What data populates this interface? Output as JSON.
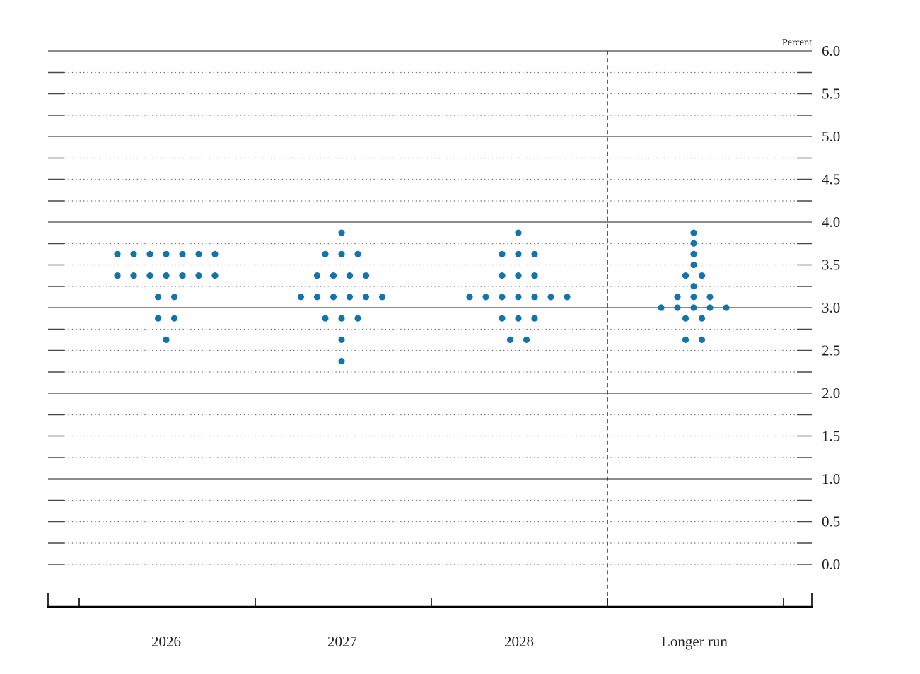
{
  "chart_data": {
    "type": "scatter",
    "variant": "fomc-dot-plot",
    "title": "",
    "xlabel": "",
    "ylabel": "Percent",
    "ylim": [
      0.0,
      6.0
    ],
    "y_minor_step": 0.25,
    "y_label_step": 0.5,
    "y_tick_labels": [
      "0.0",
      "0.5",
      "1.0",
      "1.5",
      "2.0",
      "2.5",
      "3.0",
      "3.5",
      "4.0",
      "4.5",
      "5.0",
      "5.5",
      "6.0"
    ],
    "grid": "dotted lines every 0.25, solid lines at integers, short ticks at both edges",
    "legend": "none",
    "dot_color": "#1274a8",
    "categories": [
      "2026",
      "2027",
      "2028",
      "Longer run"
    ],
    "separator": {
      "style": "dashed-vertical",
      "after_category": "2028"
    },
    "series": [
      {
        "name": "2026",
        "dots": [
          [
            3.625,
            7
          ],
          [
            3.375,
            7
          ],
          [
            3.125,
            2
          ],
          [
            2.875,
            2
          ],
          [
            2.625,
            1
          ]
        ]
      },
      {
        "name": "2027",
        "dots": [
          [
            3.875,
            1
          ],
          [
            3.625,
            3
          ],
          [
            3.375,
            4
          ],
          [
            3.125,
            6
          ],
          [
            2.875,
            3
          ],
          [
            2.625,
            1
          ],
          [
            2.375,
            1
          ]
        ]
      },
      {
        "name": "2028",
        "dots": [
          [
            3.875,
            1
          ],
          [
            3.625,
            3
          ],
          [
            3.375,
            3
          ],
          [
            3.125,
            7
          ],
          [
            2.875,
            3
          ],
          [
            2.625,
            2
          ]
        ]
      },
      {
        "name": "Longer run",
        "dots": [
          [
            3.875,
            1
          ],
          [
            3.75,
            1
          ],
          [
            3.625,
            1
          ],
          [
            3.5,
            1
          ],
          [
            3.375,
            2
          ],
          [
            3.25,
            1
          ],
          [
            3.125,
            3
          ],
          [
            3.0,
            5
          ],
          [
            2.875,
            2
          ],
          [
            2.625,
            2
          ]
        ]
      }
    ]
  }
}
